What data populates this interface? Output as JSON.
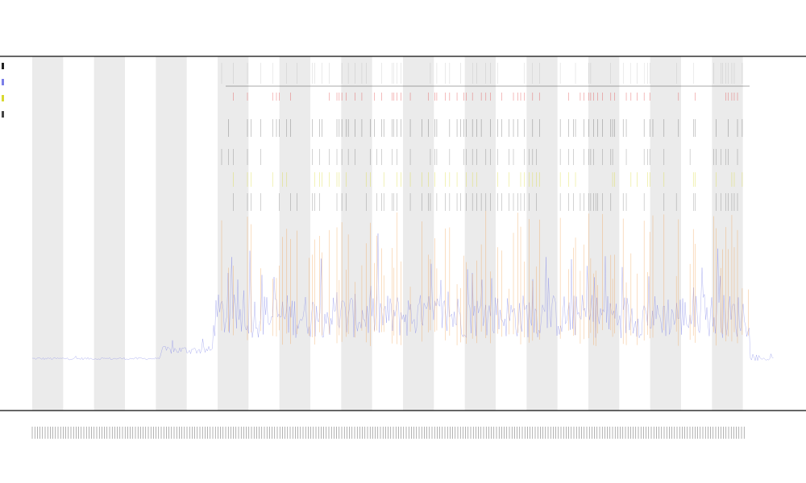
{
  "chart_data": {
    "type": "line",
    "title": "",
    "subtitle_1": "",
    "subtitle_2": "",
    "xlabel": "",
    "ylabel": "",
    "band_count": 24,
    "legend_placement": "top-left",
    "grid": false,
    "series": [
      {
        "color": "#7b7fe8"
      },
      {
        "color": "#f0a050"
      },
      {
        "color": "#d8d830"
      },
      {
        "color": "#222222"
      },
      {
        "color": "#e04040"
      }
    ],
    "band_color": "#ebebeb",
    "x_ticks_dense": true
  },
  "legend": [
    {
      "label": "",
      "color": "#222222"
    },
    {
      "label": "",
      "color": "#7b7fe8"
    },
    {
      "label": "",
      "color": "#d8d830"
    },
    {
      "label": "",
      "color": "#444444"
    }
  ]
}
